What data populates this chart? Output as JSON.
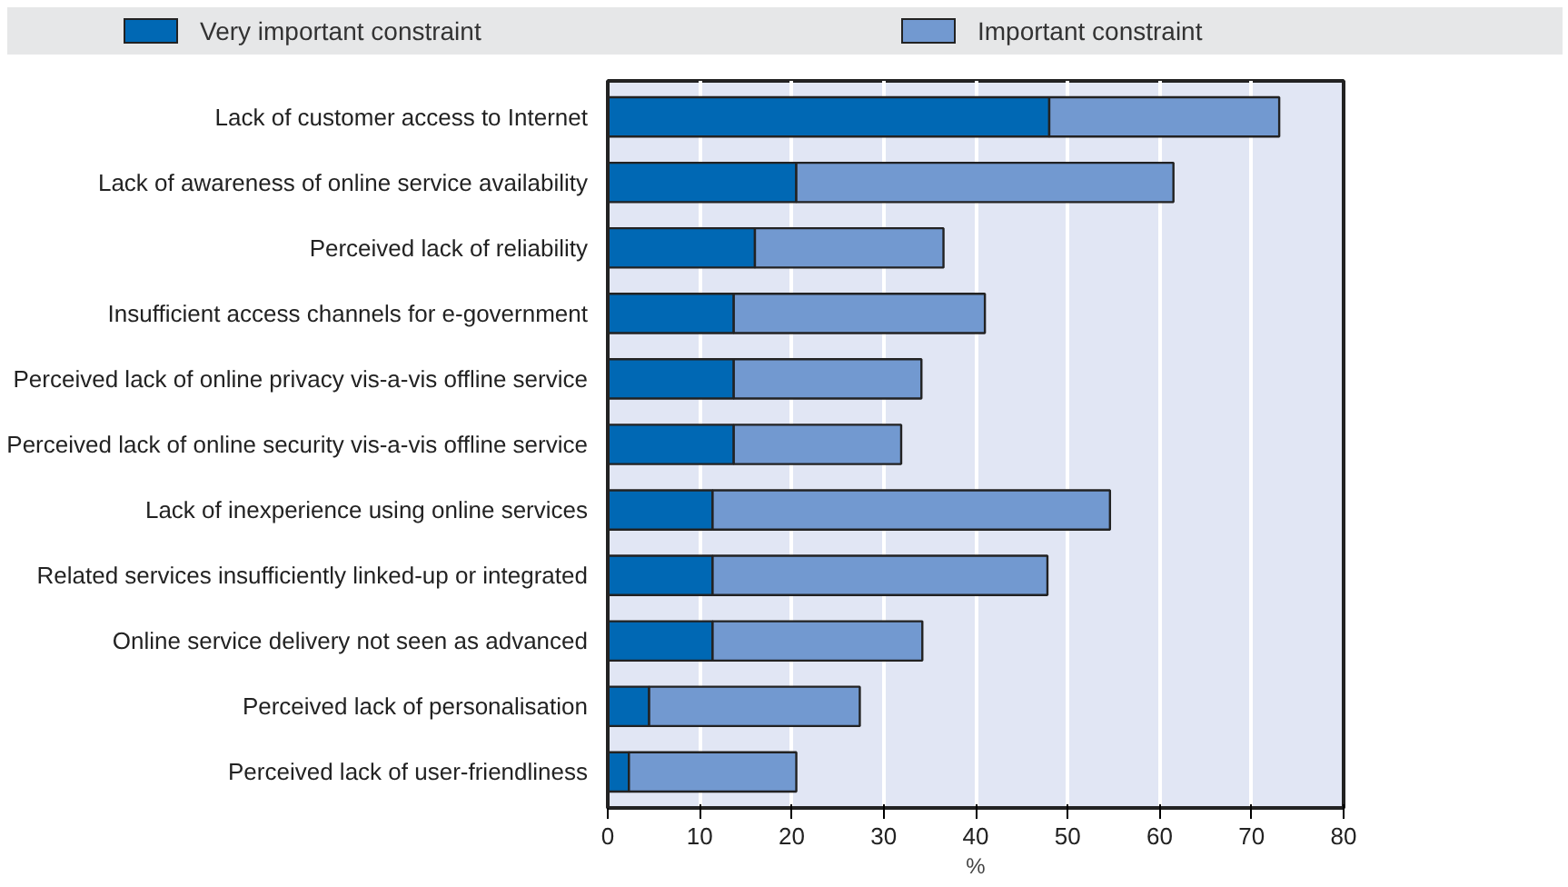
{
  "chart_data": {
    "type": "bar",
    "orientation": "horizontal",
    "stacked": true,
    "categories": [
      "Lack of customer access to Internet",
      "Lack of awareness of online service availability",
      "Perceived lack of reliability",
      "Insufficient access channels for e-government",
      "Perceived lack of online privacy vis-a-vis offline service",
      "Perceived lack of online security vis-a-vis offline service",
      "Lack of inexperience using online services",
      "Related services insufficiently linked-up or integrated",
      "Online service delivery not seen as advanced",
      "Perceived lack of personalisation",
      "Perceived lack of user-friendliness"
    ],
    "series": [
      {
        "name": "Very important constraint",
        "color": "#0068b4",
        "values": [
          48,
          20.5,
          16,
          13.7,
          13.7,
          13.7,
          11.4,
          11.4,
          11.4,
          4.5,
          2.3
        ]
      },
      {
        "name": "Important constraint",
        "color": "#7299d0",
        "values": [
          25,
          41,
          20.5,
          27.3,
          20.4,
          18.2,
          43.2,
          36.4,
          22.8,
          22.9,
          18.2
        ]
      }
    ],
    "xlabel": "%",
    "xlim": [
      0,
      80
    ],
    "xticks": [
      0,
      10,
      20,
      30,
      40,
      50,
      60,
      70,
      80
    ],
    "grid": "x",
    "legend": "top"
  }
}
